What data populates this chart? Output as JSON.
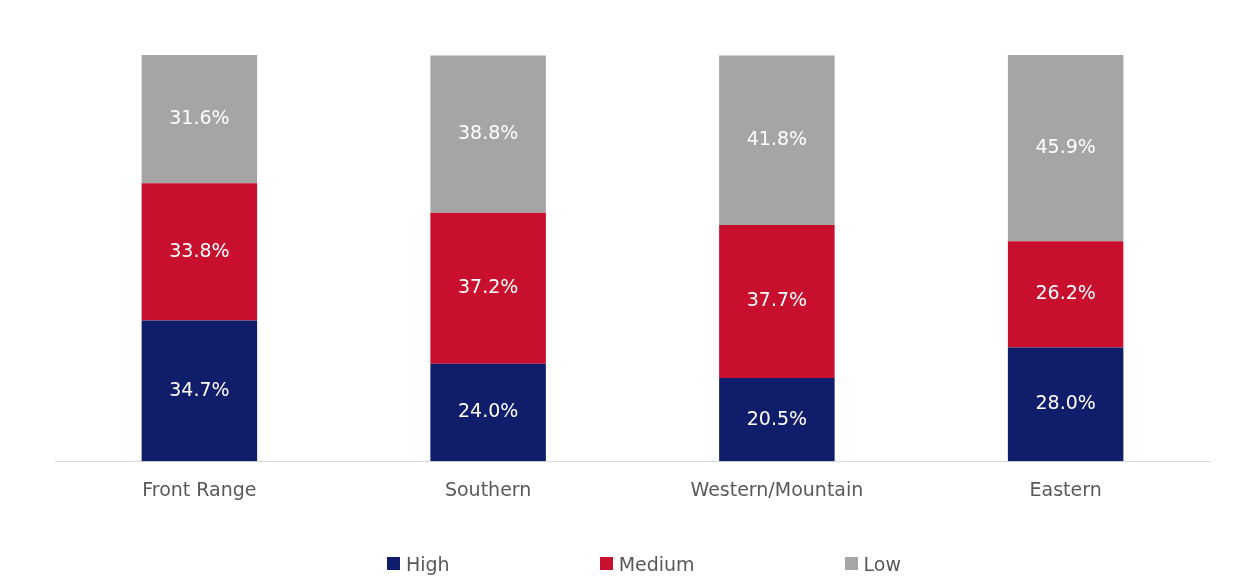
{
  "chart_data": {
    "type": "bar",
    "stacked": true,
    "categories": [
      "Front Range",
      "Southern",
      "Western/Mountain",
      "Eastern"
    ],
    "series": [
      {
        "name": "High",
        "color": "#0f1d6b",
        "values": [
          34.7,
          24.0,
          20.5,
          28.0
        ],
        "value_labels": [
          "34.7%",
          "24.0%",
          "20.5%",
          "28.0%"
        ]
      },
      {
        "name": "Medium",
        "color": "#c8102e",
        "values": [
          33.8,
          37.2,
          37.7,
          26.2
        ],
        "value_labels": [
          "33.8%",
          "37.2%",
          "37.7%",
          "26.2%"
        ]
      },
      {
        "name": "Low",
        "color": "#a5a5a5",
        "values": [
          31.6,
          38.8,
          41.8,
          45.9
        ],
        "value_labels": [
          "31.6%",
          "38.8%",
          "41.8%",
          "45.9%"
        ]
      }
    ],
    "tick_labels": "x",
    "legend": "bottom",
    "grid": false
  }
}
